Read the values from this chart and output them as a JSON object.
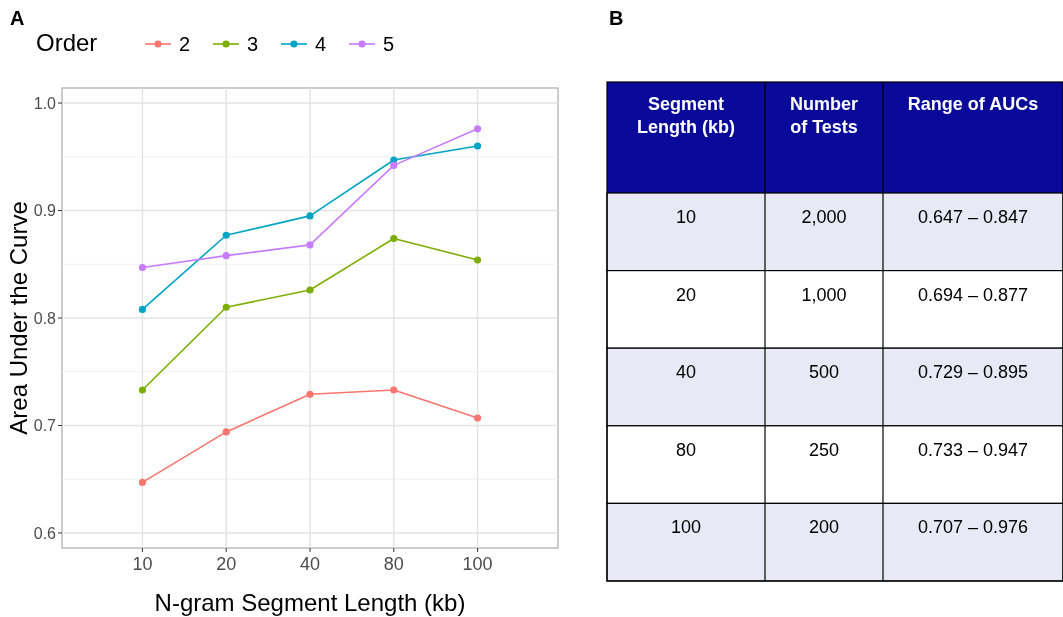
{
  "chart_data": [
    {
      "type": "line",
      "title": "A",
      "xlabel": "N-gram Segment Length (kb)",
      "ylabel": "Area Under the Curve",
      "legend_title": "Order",
      "legend": "top",
      "grid": true,
      "marker": "circle",
      "categories": [
        "10",
        "20",
        "40",
        "80",
        "100"
      ],
      "ylim": [
        0.586,
        1.014
      ],
      "yticks": [
        {
          "value": 0.6,
          "label": "0.6"
        },
        {
          "value": 0.7,
          "label": "0.7"
        },
        {
          "value": 0.8,
          "label": "0.8"
        },
        {
          "value": 0.9,
          "label": "0.9"
        },
        {
          "value": 1.0,
          "label": "1.0"
        }
      ],
      "series": [
        {
          "name": "2",
          "color": "#f8766d",
          "values": [
            0.647,
            0.694,
            0.729,
            0.733,
            0.707
          ]
        },
        {
          "name": "3",
          "color": "#7cae00",
          "values": [
            0.733,
            0.81,
            0.826,
            0.874,
            0.854
          ]
        },
        {
          "name": "4",
          "color": "#00a5c6",
          "values": [
            0.808,
            0.877,
            0.895,
            0.947,
            0.96
          ]
        },
        {
          "name": "5",
          "color": "#c77cff",
          "values": [
            0.847,
            0.858,
            0.868,
            0.942,
            0.976
          ]
        }
      ]
    },
    {
      "type": "other",
      "title": "B",
      "categories": [
        "Segment Length (kb)",
        "Number of Tests",
        "Range of AUCs"
      ],
      "annotations": [
        "10",
        "2,000",
        "0.647 – 0.847",
        "20",
        "1,000",
        "0.694 – 0.877",
        "40",
        "500",
        "0.729 – 0.895",
        "80",
        "250",
        "0.733 – 0.947",
        "100",
        "200",
        "0.707 – 0.976"
      ]
    }
  ]
}
